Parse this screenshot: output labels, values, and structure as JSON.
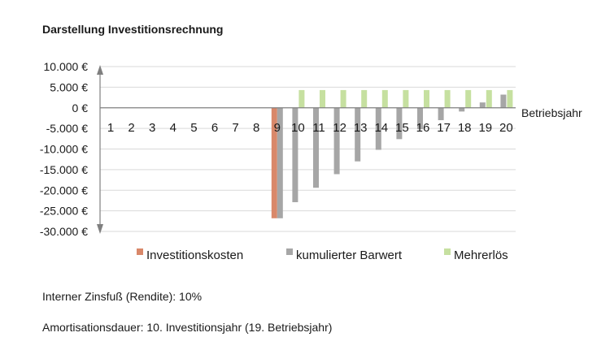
{
  "title": "Darstellung Investitionsrechnung",
  "info": {
    "irr": "Interner Zinsfuß (Rendite): 10%",
    "payback": "Amortisationsdauer: 10. Investitionsjahr  (19. Betriebsjahr)"
  },
  "colors": {
    "investitionskosten": "#d9886a",
    "barwert": "#a6a6a6",
    "mehrerloes": "#c6e0a0",
    "axis": "#7f7f7f",
    "grid": "#d9d9d9"
  },
  "chart_data": {
    "type": "bar",
    "title": "Darstellung Investitionsrechnung",
    "xlabel": "Betriebsjahr",
    "ylabel": "",
    "ylim": [
      -30000,
      10000
    ],
    "ytick_labels": [
      "10.000 €",
      "5.000 €",
      "0 €",
      "-5.000 €",
      "-10.000 €",
      "-15.000 €",
      "-20.000 €",
      "-25.000 €",
      "-30.000 €"
    ],
    "categories": [
      "1",
      "2",
      "3",
      "4",
      "5",
      "6",
      "7",
      "8",
      "9",
      "10",
      "11",
      "12",
      "13",
      "14",
      "15",
      "16",
      "17",
      "18",
      "19",
      "20"
    ],
    "series": [
      {
        "name": "Investitionskosten",
        "values": [
          0,
          0,
          0,
          0,
          0,
          0,
          0,
          0,
          -26800,
          0,
          0,
          0,
          0,
          0,
          0,
          0,
          0,
          0,
          0,
          0
        ]
      },
      {
        "name": "kumulierter Barwert",
        "values": [
          0,
          0,
          0,
          0,
          0,
          0,
          0,
          0,
          -26800,
          -22900,
          -19400,
          -16100,
          -13000,
          -10200,
          -7600,
          -5200,
          -3000,
          -900,
          1300,
          3200
        ]
      },
      {
        "name": "Mehrerlös",
        "values": [
          0,
          0,
          0,
          0,
          0,
          0,
          0,
          0,
          0,
          4300,
          4300,
          4300,
          4300,
          4300,
          4300,
          4300,
          4300,
          4300,
          4300,
          4300
        ]
      }
    ],
    "legend_position": "bottom",
    "grid": true
  }
}
